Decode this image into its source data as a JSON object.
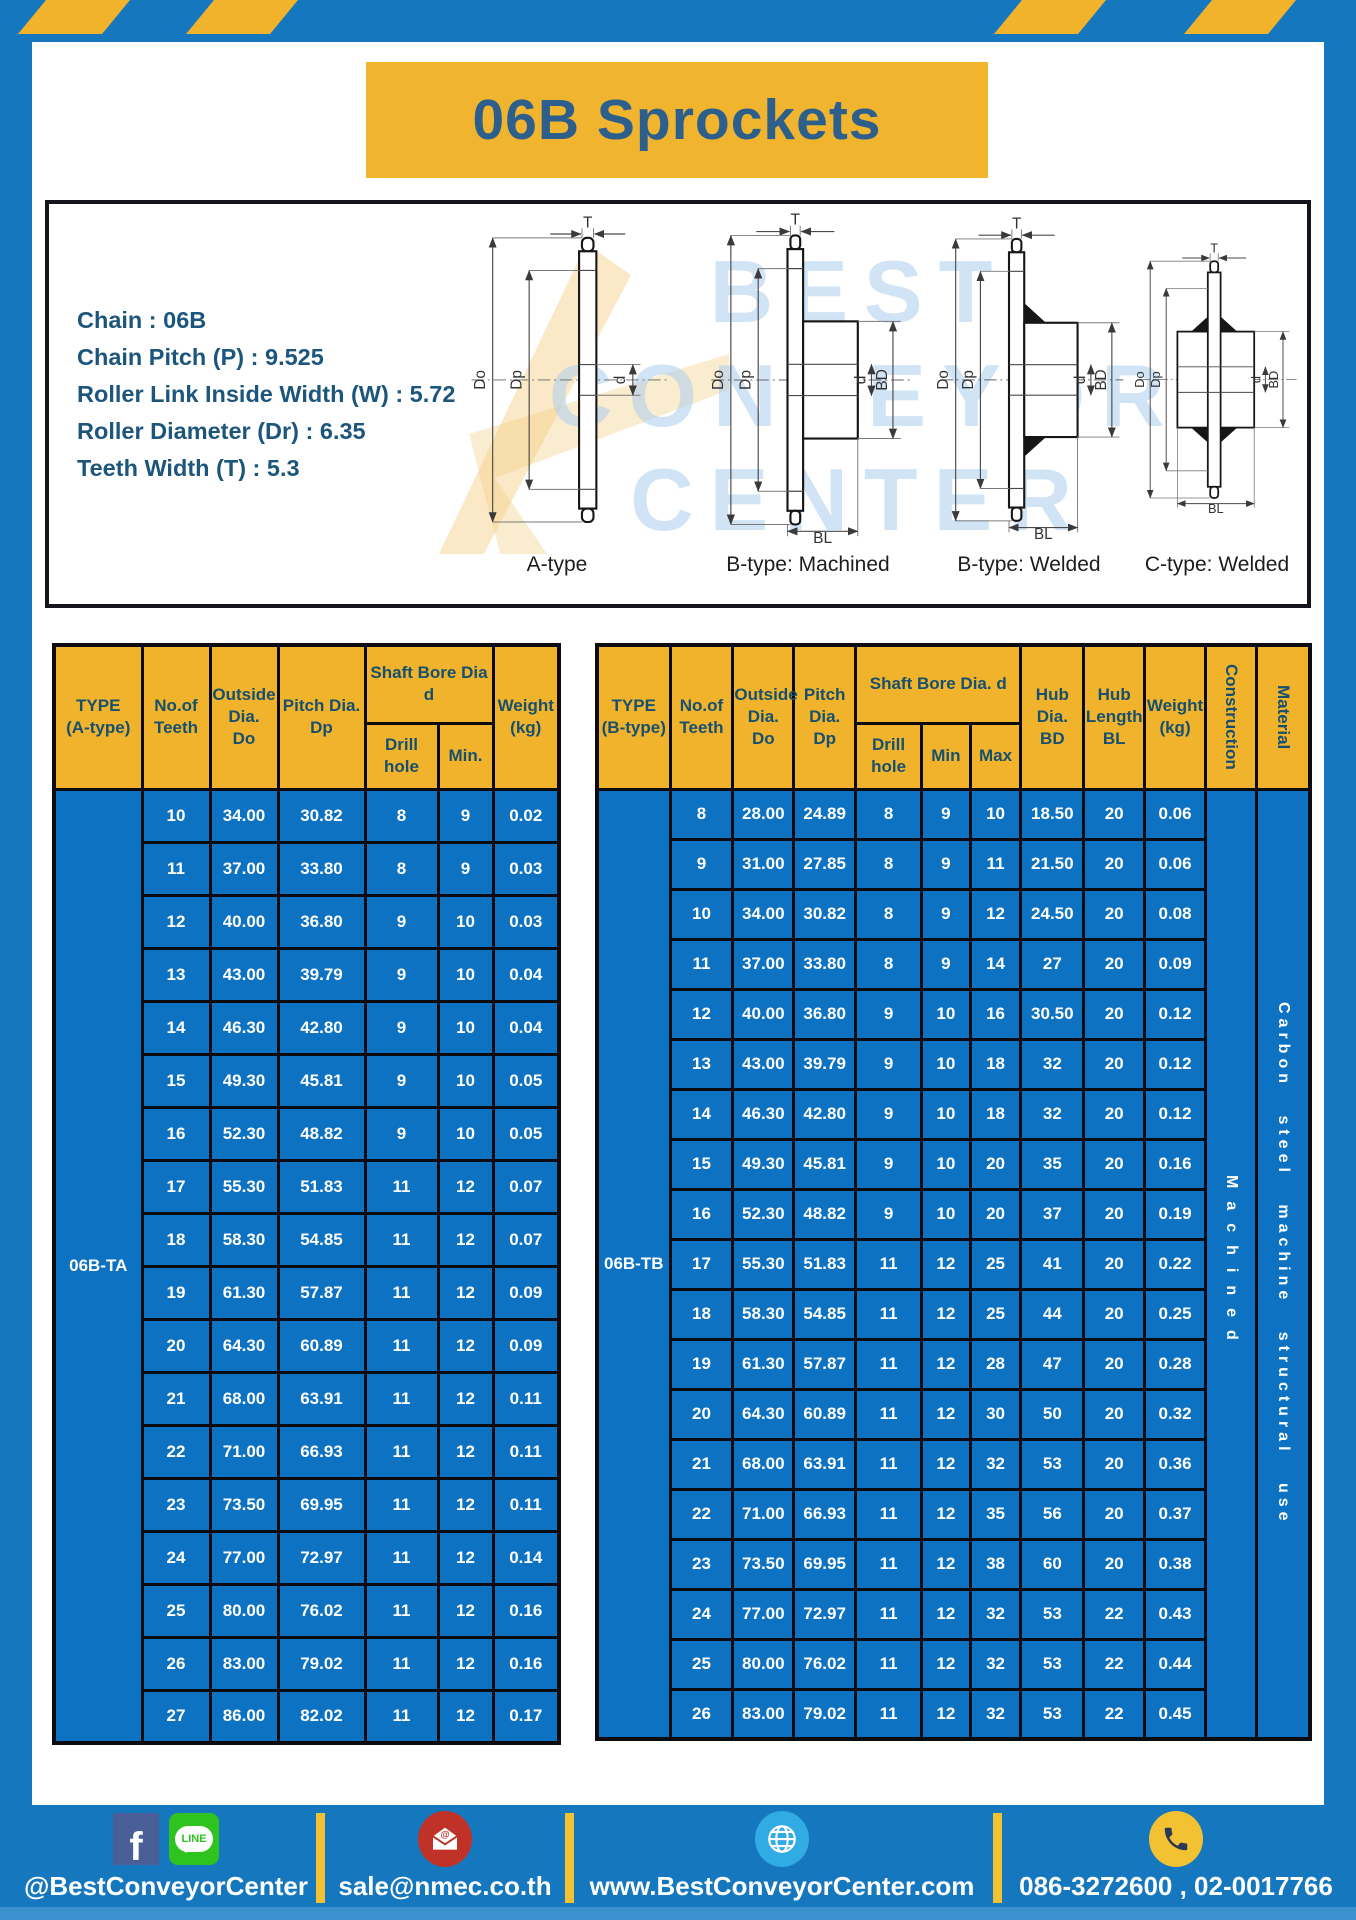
{
  "title": "06B Sprockets",
  "specs": [
    "Chain  :  06B",
    "Chain Pitch (P)  :  9.525",
    "Roller Link Inside Width (W)  :  5.72",
    "Roller Diameter (Dr)  :  6.35",
    "Teeth Width (T)  :  5.3"
  ],
  "watermark": {
    "lines": "BEST CONVEYOR CENTER"
  },
  "diagrams": [
    {
      "label": "A-type",
      "dims": [
        "T",
        "Do",
        "Dp",
        "d"
      ]
    },
    {
      "label": "B-type: Machined",
      "dims": [
        "T",
        "Do",
        "Dp",
        "d",
        "BD",
        "BL"
      ]
    },
    {
      "label": "B-type: Welded",
      "dims": [
        "T",
        "Do",
        "Dp",
        "d",
        "BD",
        "BL"
      ]
    },
    {
      "label": "C-type: Welded",
      "dims": [
        "T",
        "Do",
        "Dp",
        "d",
        "BD",
        "BL"
      ]
    }
  ],
  "table_a": {
    "headers": {
      "type": "TYPE\n(A-type)",
      "teeth": "No.of\nTeeth",
      "do": "Outside\nDia.\nDo",
      "dp": "Pitch Dia.\nDp",
      "shaft": "Shaft Bore Dia d",
      "drill": "Drill hole",
      "min": "Min.",
      "weight": "Weight\n(kg)"
    },
    "type_value": "06B-TA",
    "rows": [
      [
        "10",
        "34.00",
        "30.82",
        "8",
        "9",
        "0.02"
      ],
      [
        "11",
        "37.00",
        "33.80",
        "8",
        "9",
        "0.03"
      ],
      [
        "12",
        "40.00",
        "36.80",
        "9",
        "10",
        "0.03"
      ],
      [
        "13",
        "43.00",
        "39.79",
        "9",
        "10",
        "0.04"
      ],
      [
        "14",
        "46.30",
        "42.80",
        "9",
        "10",
        "0.04"
      ],
      [
        "15",
        "49.30",
        "45.81",
        "9",
        "10",
        "0.05"
      ],
      [
        "16",
        "52.30",
        "48.82",
        "9",
        "10",
        "0.05"
      ],
      [
        "17",
        "55.30",
        "51.83",
        "11",
        "12",
        "0.07"
      ],
      [
        "18",
        "58.30",
        "54.85",
        "11",
        "12",
        "0.07"
      ],
      [
        "19",
        "61.30",
        "57.87",
        "11",
        "12",
        "0.09"
      ],
      [
        "20",
        "64.30",
        "60.89",
        "11",
        "12",
        "0.09"
      ],
      [
        "21",
        "68.00",
        "63.91",
        "11",
        "12",
        "0.11"
      ],
      [
        "22",
        "71.00",
        "66.93",
        "11",
        "12",
        "0.11"
      ],
      [
        "23",
        "73.50",
        "69.95",
        "11",
        "12",
        "0.11"
      ],
      [
        "24",
        "77.00",
        "72.97",
        "11",
        "12",
        "0.14"
      ],
      [
        "25",
        "80.00",
        "76.02",
        "11",
        "12",
        "0.16"
      ],
      [
        "26",
        "83.00",
        "79.02",
        "11",
        "12",
        "0.16"
      ],
      [
        "27",
        "86.00",
        "82.02",
        "11",
        "12",
        "0.17"
      ]
    ]
  },
  "table_b": {
    "headers": {
      "type": "TYPE\n(B-type)",
      "teeth": "No.of\nTeeth",
      "do": "Outside\nDia.\nDo",
      "dp": "Pitch\nDia.\nDp",
      "shaft": "Shaft Bore Dia.  d",
      "drill": "Drill hole",
      "min": "Min",
      "max": "Max",
      "bd": "Hub\nDia.\nBD",
      "bl": "Hub\nLength\nBL",
      "weight": "Weight\n(kg)",
      "construction": "Construction",
      "material": "Material"
    },
    "type_value": "06B-TB",
    "construction_value": "Machined",
    "material_value": "Carbon steel machine structural use",
    "rows": [
      [
        "8",
        "28.00",
        "24.89",
        "8",
        "9",
        "10",
        "18.50",
        "20",
        "0.06"
      ],
      [
        "9",
        "31.00",
        "27.85",
        "8",
        "9",
        "11",
        "21.50",
        "20",
        "0.06"
      ],
      [
        "10",
        "34.00",
        "30.82",
        "8",
        "9",
        "12",
        "24.50",
        "20",
        "0.08"
      ],
      [
        "11",
        "37.00",
        "33.80",
        "8",
        "9",
        "14",
        "27",
        "20",
        "0.09"
      ],
      [
        "12",
        "40.00",
        "36.80",
        "9",
        "10",
        "16",
        "30.50",
        "20",
        "0.12"
      ],
      [
        "13",
        "43.00",
        "39.79",
        "9",
        "10",
        "18",
        "32",
        "20",
        "0.12"
      ],
      [
        "14",
        "46.30",
        "42.80",
        "9",
        "10",
        "18",
        "32",
        "20",
        "0.12"
      ],
      [
        "15",
        "49.30",
        "45.81",
        "9",
        "10",
        "20",
        "35",
        "20",
        "0.16"
      ],
      [
        "16",
        "52.30",
        "48.82",
        "9",
        "10",
        "20",
        "37",
        "20",
        "0.19"
      ],
      [
        "17",
        "55.30",
        "51.83",
        "11",
        "12",
        "25",
        "41",
        "20",
        "0.22"
      ],
      [
        "18",
        "58.30",
        "54.85",
        "11",
        "12",
        "25",
        "44",
        "20",
        "0.25"
      ],
      [
        "19",
        "61.30",
        "57.87",
        "11",
        "12",
        "28",
        "47",
        "20",
        "0.28"
      ],
      [
        "20",
        "64.30",
        "60.89",
        "11",
        "12",
        "30",
        "50",
        "20",
        "0.32"
      ],
      [
        "21",
        "68.00",
        "63.91",
        "11",
        "12",
        "32",
        "53",
        "20",
        "0.36"
      ],
      [
        "22",
        "71.00",
        "66.93",
        "11",
        "12",
        "35",
        "56",
        "20",
        "0.37"
      ],
      [
        "23",
        "73.50",
        "69.95",
        "11",
        "12",
        "38",
        "60",
        "20",
        "0.38"
      ],
      [
        "24",
        "77.00",
        "72.97",
        "11",
        "12",
        "32",
        "53",
        "22",
        "0.43"
      ],
      [
        "25",
        "80.00",
        "76.02",
        "11",
        "12",
        "32",
        "53",
        "22",
        "0.44"
      ],
      [
        "26",
        "83.00",
        "79.02",
        "11",
        "12",
        "32",
        "53",
        "22",
        "0.45"
      ]
    ]
  },
  "footer": {
    "social_handle": "@BestConveyorCenter",
    "line_label": "LINE",
    "facebook_label": "f",
    "email": "sale@nmec.co.th",
    "website": "www.BestConveyorCenter.com",
    "phone": "086-3272600 , 02-0017766"
  },
  "colors": {
    "frame_blue": "#1577BE",
    "cell_blue": "#0D72C2",
    "accent_yellow": "#F0B32B",
    "navy_text": "#2D5F8C"
  }
}
